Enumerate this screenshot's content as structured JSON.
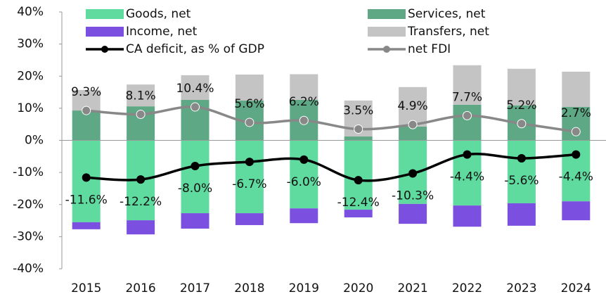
{
  "chart_data": {
    "type": "bar",
    "categories": [
      "2015",
      "2016",
      "2017",
      "2018",
      "2019",
      "2020",
      "2021",
      "2022",
      "2023",
      "2024"
    ],
    "series": [
      {
        "name": "Goods, net",
        "color": "#5fdba0",
        "stack": "neg",
        "values": [
          -25.5,
          -24.9,
          -22.7,
          -22.7,
          -21.2,
          -21.6,
          -19.8,
          -20.3,
          -19.6,
          -19.0
        ]
      },
      {
        "name": "Services, net",
        "color": "#5ea885",
        "stack": "pos",
        "values": [
          9.3,
          10.6,
          12.6,
          12.4,
          12.6,
          1.2,
          4.3,
          11.1,
          10.9,
          10.4
        ]
      },
      {
        "name": "Income, net",
        "color": "#7b4fe0",
        "stack": "neg",
        "values": [
          -2.2,
          -4.4,
          -4.8,
          -3.7,
          -4.6,
          -2.4,
          -6.2,
          -6.6,
          -7.0,
          -5.9
        ]
      },
      {
        "name": "Transfers, net",
        "color": "#c4c4c4",
        "stack": "pos",
        "values": [
          6.4,
          6.8,
          7.7,
          8.1,
          8.0,
          11.2,
          12.3,
          12.3,
          11.4,
          11.0
        ]
      }
    ],
    "lines": [
      {
        "name": "CA deficit, as % of GDP",
        "color": "#000000",
        "values": [
          -11.6,
          -12.2,
          -8.0,
          -6.7,
          -6.0,
          -12.4,
          -10.3,
          -4.4,
          -5.6,
          -4.4
        ],
        "value_labels": [
          "-11.6%",
          "-12.2%",
          "-8.0%",
          "-6.7%",
          "-6.0%",
          "-12.4%",
          "-10.3%",
          "-4.4%",
          "-5.6%",
          "-4.4%"
        ]
      },
      {
        "name": "net FDI",
        "color": "#888888",
        "values": [
          9.3,
          8.1,
          10.4,
          5.6,
          6.2,
          3.5,
          4.9,
          7.7,
          5.2,
          2.7
        ],
        "value_labels": [
          "9.3%",
          "8.1%",
          "10.4%",
          "5.6%",
          "6.2%",
          "3.5%",
          "4.9%",
          "7.7%",
          "5.2%",
          "2.7%"
        ]
      }
    ],
    "ylim": [
      -40,
      40
    ],
    "yticks": [
      {
        "value": -40,
        "label": "-40%"
      },
      {
        "value": -30,
        "label": "-30%"
      },
      {
        "value": -20,
        "label": "-20%"
      },
      {
        "value": -10,
        "label": "-10%"
      },
      {
        "value": 0,
        "label": "0%"
      },
      {
        "value": 10,
        "label": "10%"
      },
      {
        "value": 20,
        "label": "20%"
      },
      {
        "value": 30,
        "label": "30%"
      },
      {
        "value": 40,
        "label": "40%"
      }
    ]
  }
}
